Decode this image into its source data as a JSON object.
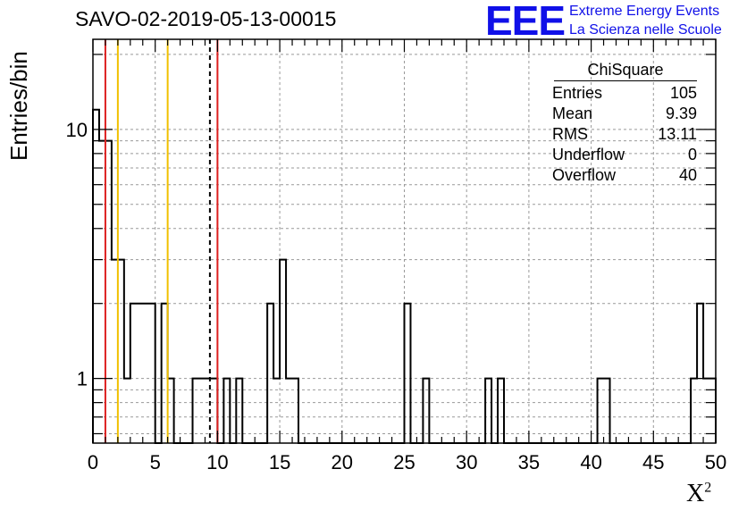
{
  "chart_data": {
    "type": "histogram",
    "title": "SAVO-02-2019-05-13-00015",
    "xlabel": "X",
    "xlabel_superscript": "2",
    "ylabel": "Entries/bin",
    "xlim": [
      0,
      50
    ],
    "ylim_log": [
      0.55,
      23
    ],
    "log_y": true,
    "grid": true,
    "bin_width": 0.5,
    "bin_starts": [
      0,
      0.5,
      1.5,
      2.5,
      3,
      5,
      5.5,
      6,
      6.5,
      8,
      10,
      10.5,
      11,
      11.5,
      12,
      14,
      14.5,
      15,
      15.5,
      16.5,
      25,
      25.5,
      26.5,
      27,
      31.5,
      32,
      32.5,
      33,
      40.5,
      41.5,
      48,
      48.5,
      49,
      50
    ],
    "bin_values": [
      12,
      9,
      3,
      1,
      2,
      0,
      2,
      1,
      0,
      1,
      0,
      1,
      0,
      1,
      0,
      2,
      1,
      3,
      1,
      0,
      2,
      0,
      1,
      0,
      1,
      0,
      1,
      0,
      1,
      0,
      1,
      2,
      1,
      0
    ],
    "x_ticks": [
      "0",
      "5",
      "10",
      "15",
      "20",
      "25",
      "30",
      "35",
      "40",
      "45",
      "50"
    ],
    "y_ticks": [
      "1",
      "10"
    ],
    "vertical_lines": [
      {
        "x": 1.0,
        "color": "#dd2020",
        "style": "solid"
      },
      {
        "x": 2.0,
        "color": "#f0c000",
        "style": "solid"
      },
      {
        "x": 6.0,
        "color": "#f0c000",
        "style": "solid"
      },
      {
        "x": 9.39,
        "color": "#000000",
        "style": "dashed"
      },
      {
        "x": 10.0,
        "color": "#dd2020",
        "style": "solid"
      }
    ],
    "stats": {
      "title": "ChiSquare",
      "rows": [
        {
          "label": "Entries",
          "value": "105"
        },
        {
          "label": "Mean",
          "value": "9.39"
        },
        {
          "label": "RMS",
          "value": "13.11"
        },
        {
          "label": "Underflow",
          "value": "0"
        },
        {
          "label": "Overflow",
          "value": "40"
        }
      ]
    }
  },
  "logo": {
    "mark": "EEE",
    "line1": "Extreme Energy Events",
    "line2": "La Scienza nelle Scuole"
  },
  "colors": {
    "logo": "#1010e8",
    "red": "#dd2020",
    "yellow": "#f0c000"
  }
}
